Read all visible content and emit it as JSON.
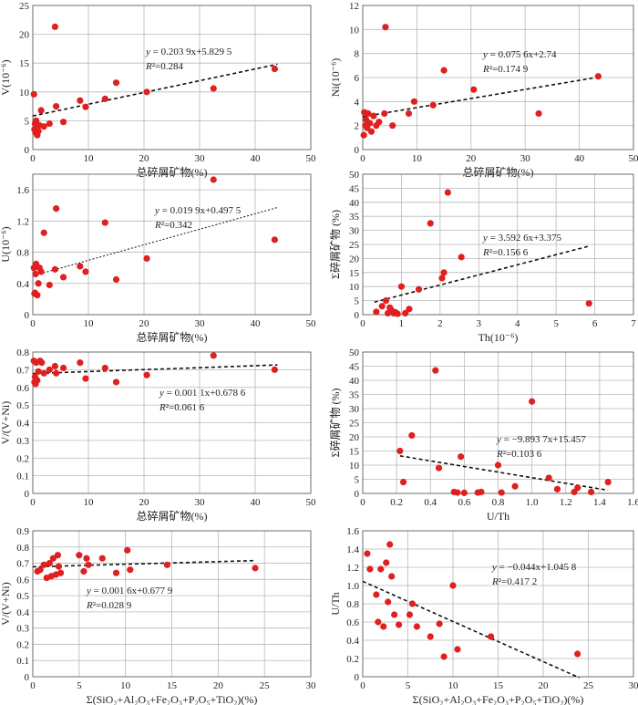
{
  "chart_data": [
    {
      "type": "scatter",
      "xlabel": "总碎屑矿物(%)",
      "ylabel": "V(10⁻⁶)",
      "xlim": [
        0,
        50
      ],
      "ylim": [
        0,
        25
      ],
      "xticks": [
        "0",
        "10",
        "20",
        "30",
        "40",
        "50"
      ],
      "yticks": [
        "0",
        "5",
        "10",
        "15",
        "20",
        "25"
      ],
      "grid": true,
      "points": {
        "x": [
          0.2,
          0.3,
          0.4,
          0.5,
          0.6,
          0.8,
          1.0,
          1.2,
          1.5,
          2.0,
          3.0,
          4.0,
          4.2,
          5.5,
          8.5,
          9.5,
          13,
          15,
          20.5,
          32.5,
          43.5
        ],
        "y": [
          9.6,
          3.5,
          4.5,
          3.0,
          5.0,
          2.5,
          3.2,
          4.2,
          6.8,
          4.0,
          4.5,
          21.3,
          7.5,
          4.8,
          8.5,
          7.4,
          8.8,
          11.6,
          10.0,
          10.6,
          14.0
        ]
      },
      "trend": {
        "slope": 0.2039,
        "intercept": 5.8295,
        "x_range": [
          0,
          44
        ]
      },
      "equation": "y = 0.203 9x+5.829 5",
      "r2": "R²=0.284"
    },
    {
      "type": "scatter",
      "xlabel": "总碎屑矿物(%)",
      "ylabel": "Ni(10⁻⁶)",
      "xlim": [
        0,
        50
      ],
      "ylim": [
        0,
        12
      ],
      "xticks": [
        "0",
        "10",
        "20",
        "30",
        "40",
        "50"
      ],
      "yticks": [
        "0",
        "2",
        "4",
        "6",
        "8",
        "10",
        "12"
      ],
      "grid": true,
      "points": {
        "x": [
          0.2,
          0.3,
          0.5,
          0.6,
          0.8,
          1.0,
          1.3,
          1.6,
          2.0,
          2.5,
          3.0,
          4.0,
          4.2,
          5.5,
          8.5,
          9.5,
          13,
          15,
          20.5,
          32.5,
          43.5
        ],
        "y": [
          1.2,
          3.1,
          2.0,
          2.5,
          1.8,
          3.0,
          2.2,
          1.5,
          2.8,
          2.0,
          2.3,
          3.0,
          10.2,
          2.0,
          3.0,
          4.0,
          3.7,
          6.6,
          5.0,
          3.0,
          6.1
        ]
      },
      "trend": {
        "slope": 0.0756,
        "intercept": 2.74,
        "x_range": [
          0,
          44
        ]
      },
      "equation": "y = 0.075 6x+2.74",
      "r2": "R²=0.174 9"
    },
    {
      "type": "scatter",
      "xlabel": "总碎屑矿物(%)",
      "ylabel": "U(10⁻⁶)",
      "xlim": [
        0,
        50
      ],
      "ylim": [
        0,
        1.8
      ],
      "xticks": [
        "0",
        "10",
        "20",
        "30",
        "40",
        "50"
      ],
      "yticks": [
        "0",
        "0.4",
        "0.8",
        "1.2",
        "1.6"
      ],
      "grid": true,
      "points": {
        "x": [
          0.2,
          0.3,
          0.4,
          0.5,
          0.6,
          0.8,
          1.0,
          1.2,
          1.5,
          2.0,
          3.0,
          4.0,
          4.2,
          5.5,
          8.5,
          9.5,
          13,
          15,
          20.5,
          32.5,
          43.5
        ],
        "y": [
          0.6,
          0.27,
          0.28,
          0.52,
          0.65,
          0.25,
          0.4,
          0.6,
          0.55,
          1.05,
          0.38,
          0.58,
          1.36,
          0.48,
          0.62,
          0.55,
          1.18,
          0.45,
          0.72,
          1.73,
          0.96
        ]
      },
      "trend": {
        "slope": 0.0199,
        "intercept": 0.4975,
        "x_range": [
          0,
          44
        ]
      },
      "equation": "y = 0.019 9x+0.497 5",
      "r2": "R²=0.342"
    },
    {
      "type": "scatter",
      "xlabel": "Th(10⁻⁶)",
      "ylabel": "Σ碎屑矿物 (%)",
      "xlim": [
        0,
        7
      ],
      "ylim": [
        0,
        50
      ],
      "xticks": [
        "0",
        "1",
        "2",
        "3",
        "4",
        "5",
        "6",
        "7"
      ],
      "yticks": [
        "0",
        "5",
        "10",
        "15",
        "20",
        "25",
        "30",
        "35",
        "40",
        "45",
        "50"
      ],
      "grid": true,
      "points": {
        "x": [
          0.35,
          0.5,
          0.6,
          0.65,
          0.7,
          0.75,
          0.8,
          0.85,
          0.9,
          1.0,
          1.1,
          1.2,
          1.45,
          1.75,
          2.05,
          2.1,
          2.2,
          2.55,
          5.85
        ],
        "y": [
          1.0,
          3.0,
          5.0,
          0.5,
          2.5,
          1.5,
          0.5,
          0.8,
          0.3,
          10.0,
          0.5,
          2.0,
          9.0,
          32.5,
          13.0,
          15.0,
          43.5,
          20.5,
          4.0
        ]
      },
      "trend": {
        "slope": 3.5926,
        "intercept": 3.375,
        "x_range": [
          0.3,
          5.85
        ]
      },
      "equation": "y = 3.592 6x+3.375",
      "r2": "R²=0.156 6"
    },
    {
      "type": "scatter",
      "xlabel": "总碎屑矿物(%)",
      "ylabel": "V/(V+Ni)",
      "xlim": [
        0,
        50
      ],
      "ylim": [
        0,
        0.8
      ],
      "xticks": [
        "0",
        "10",
        "20",
        "30",
        "40",
        "50"
      ],
      "yticks": [
        "0",
        "0.1",
        "0.2",
        "0.3",
        "0.4",
        "0.5",
        "0.6",
        "0.7",
        "0.8"
      ],
      "grid": true,
      "points": {
        "x": [
          0.2,
          0.3,
          0.4,
          0.5,
          0.6,
          0.8,
          1.0,
          1.3,
          1.6,
          2.0,
          3.0,
          4.0,
          4.2,
          5.5,
          8.5,
          9.5,
          13,
          15,
          20.5,
          32.5,
          43.5
        ],
        "y": [
          0.75,
          0.63,
          0.66,
          0.62,
          0.74,
          0.64,
          0.69,
          0.75,
          0.74,
          0.68,
          0.7,
          0.72,
          0.68,
          0.71,
          0.74,
          0.65,
          0.71,
          0.63,
          0.67,
          0.78,
          0.7
        ]
      },
      "trend": {
        "slope": 0.0011,
        "intercept": 0.6786,
        "x_range": [
          0,
          44
        ]
      },
      "equation": "y = 0.001 1x+0.678 6",
      "r2": "R²=0.061 6"
    },
    {
      "type": "scatter",
      "xlabel": "U/Th",
      "ylabel": "Σ碎屑矿物 (%)",
      "xlim": [
        0,
        1.6
      ],
      "ylim": [
        0,
        50
      ],
      "xticks": [
        "0",
        "0.2",
        "0.4",
        "0.6",
        "0.8",
        "1.0",
        "1.2",
        "1.4",
        "1.6"
      ],
      "yticks": [
        "0",
        "5",
        "10",
        "15",
        "20",
        "25",
        "30",
        "35",
        "40",
        "45",
        "50"
      ],
      "grid": true,
      "points": {
        "x": [
          0.22,
          0.24,
          0.29,
          0.43,
          0.45,
          0.54,
          0.56,
          0.58,
          0.6,
          0.68,
          0.7,
          0.8,
          0.82,
          0.9,
          1.0,
          1.1,
          1.15,
          1.25,
          1.27,
          1.35,
          1.45
        ],
        "y": [
          15.0,
          4.0,
          20.5,
          43.5,
          9.0,
          0.5,
          0.3,
          13.0,
          0.2,
          0.3,
          0.5,
          10.0,
          0.3,
          2.5,
          32.5,
          5.5,
          1.5,
          0.5,
          2.0,
          0.5,
          4.0
        ]
      },
      "trend": {
        "slope": -9.8937,
        "intercept": 15.457,
        "x_range": [
          0.22,
          1.45
        ]
      },
      "equation": "y = −9.893 7x+15.457",
      "r2": "R²=0.103 6"
    },
    {
      "type": "scatter",
      "xlabel": "Σ(SiO₂+Al₂O₃+Fe₂O₃+P₂O₅+TiO₂)(%)",
      "ylabel": "V/(V+Ni)",
      "xlim": [
        0,
        30
      ],
      "ylim": [
        0,
        0.9
      ],
      "xticks": [
        "0",
        "5",
        "10",
        "15",
        "20",
        "25",
        "30"
      ],
      "yticks": [
        "0",
        "0.1",
        "0.2",
        "0.3",
        "0.4",
        "0.5",
        "0.6",
        "0.7",
        "0.8",
        "0.9"
      ],
      "grid": true,
      "points": {
        "x": [
          0.5,
          0.8,
          1.2,
          1.5,
          1.8,
          2.0,
          2.2,
          2.5,
          2.7,
          2.8,
          3.0,
          5.0,
          5.5,
          5.8,
          6.0,
          7.5,
          9.0,
          10.2,
          10.5,
          14.5,
          24.0
        ],
        "y": [
          0.65,
          0.66,
          0.69,
          0.61,
          0.7,
          0.62,
          0.73,
          0.63,
          0.75,
          0.68,
          0.64,
          0.75,
          0.65,
          0.73,
          0.69,
          0.73,
          0.64,
          0.78,
          0.66,
          0.69,
          0.67
        ]
      },
      "trend": {
        "slope": 0.0016,
        "intercept": 0.6779,
        "x_range": [
          0,
          24
        ]
      },
      "equation": "y = 0.001 6x+0.677 9",
      "r2": "R²=0.028 9"
    },
    {
      "type": "scatter",
      "xlabel": "Σ(SiO₂+Al₂O₃+Fe₂O₃+P₂O₅+TiO₂)(%)",
      "ylabel": "U/Th",
      "xlim": [
        0,
        30
      ],
      "ylim": [
        0,
        1.6
      ],
      "xticks": [
        "0",
        "5",
        "10",
        "15",
        "20",
        "25",
        "30"
      ],
      "yticks": [
        "0",
        "0.2",
        "0.4",
        "0.6",
        "0.8",
        "1.0",
        "1.2",
        "1.4",
        "1.6"
      ],
      "grid": true,
      "points": {
        "x": [
          0.5,
          0.8,
          1.5,
          1.7,
          2.0,
          2.3,
          2.6,
          2.8,
          3.0,
          3.2,
          3.5,
          4.0,
          5.2,
          5.5,
          6.0,
          7.5,
          8.5,
          9.0,
          10.0,
          10.5,
          14.2,
          23.8
        ],
        "y": [
          1.35,
          1.18,
          0.9,
          0.6,
          1.18,
          0.55,
          1.25,
          0.82,
          1.45,
          1.1,
          0.68,
          0.57,
          0.68,
          0.8,
          0.55,
          0.44,
          0.58,
          0.22,
          1.0,
          0.3,
          0.44,
          0.25
        ]
      },
      "trend": {
        "slope": -0.044,
        "intercept": 1.0458,
        "x_range": [
          0,
          24
        ]
      },
      "equation": "y = −0.044x+1.045 8",
      "r2": "R²=0.417 2"
    }
  ]
}
